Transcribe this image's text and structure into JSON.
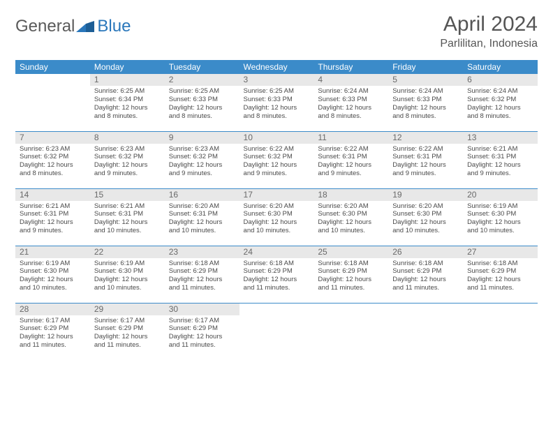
{
  "logo": {
    "text_general": "General",
    "text_blue": "Blue"
  },
  "header": {
    "month_title": "April 2024",
    "location": "Parlilitan, Indonesia"
  },
  "styling": {
    "header_bg": "#3b8bc9",
    "header_fg": "#ffffff",
    "daynum_bg": "#e8e8e8",
    "daynum_fg": "#696969",
    "cell_border": "#3b8bc9",
    "body_text": "#4a4a4a",
    "title_color": "#555555",
    "page_bg": "#ffffff",
    "header_fontsize": 12,
    "cell_fontsize": 9.5,
    "title_fontsize": 30,
    "location_fontsize": 16
  },
  "weekdays": [
    "Sunday",
    "Monday",
    "Tuesday",
    "Wednesday",
    "Thursday",
    "Friday",
    "Saturday"
  ],
  "grid": [
    [
      {
        "n": "",
        "sr": "",
        "ss": "",
        "dl": ""
      },
      {
        "n": "1",
        "sr": "Sunrise: 6:25 AM",
        "ss": "Sunset: 6:34 PM",
        "dl": "Daylight: 12 hours and 8 minutes."
      },
      {
        "n": "2",
        "sr": "Sunrise: 6:25 AM",
        "ss": "Sunset: 6:33 PM",
        "dl": "Daylight: 12 hours and 8 minutes."
      },
      {
        "n": "3",
        "sr": "Sunrise: 6:25 AM",
        "ss": "Sunset: 6:33 PM",
        "dl": "Daylight: 12 hours and 8 minutes."
      },
      {
        "n": "4",
        "sr": "Sunrise: 6:24 AM",
        "ss": "Sunset: 6:33 PM",
        "dl": "Daylight: 12 hours and 8 minutes."
      },
      {
        "n": "5",
        "sr": "Sunrise: 6:24 AM",
        "ss": "Sunset: 6:33 PM",
        "dl": "Daylight: 12 hours and 8 minutes."
      },
      {
        "n": "6",
        "sr": "Sunrise: 6:24 AM",
        "ss": "Sunset: 6:32 PM",
        "dl": "Daylight: 12 hours and 8 minutes."
      }
    ],
    [
      {
        "n": "7",
        "sr": "Sunrise: 6:23 AM",
        "ss": "Sunset: 6:32 PM",
        "dl": "Daylight: 12 hours and 8 minutes."
      },
      {
        "n": "8",
        "sr": "Sunrise: 6:23 AM",
        "ss": "Sunset: 6:32 PM",
        "dl": "Daylight: 12 hours and 9 minutes."
      },
      {
        "n": "9",
        "sr": "Sunrise: 6:23 AM",
        "ss": "Sunset: 6:32 PM",
        "dl": "Daylight: 12 hours and 9 minutes."
      },
      {
        "n": "10",
        "sr": "Sunrise: 6:22 AM",
        "ss": "Sunset: 6:32 PM",
        "dl": "Daylight: 12 hours and 9 minutes."
      },
      {
        "n": "11",
        "sr": "Sunrise: 6:22 AM",
        "ss": "Sunset: 6:31 PM",
        "dl": "Daylight: 12 hours and 9 minutes."
      },
      {
        "n": "12",
        "sr": "Sunrise: 6:22 AM",
        "ss": "Sunset: 6:31 PM",
        "dl": "Daylight: 12 hours and 9 minutes."
      },
      {
        "n": "13",
        "sr": "Sunrise: 6:21 AM",
        "ss": "Sunset: 6:31 PM",
        "dl": "Daylight: 12 hours and 9 minutes."
      }
    ],
    [
      {
        "n": "14",
        "sr": "Sunrise: 6:21 AM",
        "ss": "Sunset: 6:31 PM",
        "dl": "Daylight: 12 hours and 9 minutes."
      },
      {
        "n": "15",
        "sr": "Sunrise: 6:21 AM",
        "ss": "Sunset: 6:31 PM",
        "dl": "Daylight: 12 hours and 10 minutes."
      },
      {
        "n": "16",
        "sr": "Sunrise: 6:20 AM",
        "ss": "Sunset: 6:31 PM",
        "dl": "Daylight: 12 hours and 10 minutes."
      },
      {
        "n": "17",
        "sr": "Sunrise: 6:20 AM",
        "ss": "Sunset: 6:30 PM",
        "dl": "Daylight: 12 hours and 10 minutes."
      },
      {
        "n": "18",
        "sr": "Sunrise: 6:20 AM",
        "ss": "Sunset: 6:30 PM",
        "dl": "Daylight: 12 hours and 10 minutes."
      },
      {
        "n": "19",
        "sr": "Sunrise: 6:20 AM",
        "ss": "Sunset: 6:30 PM",
        "dl": "Daylight: 12 hours and 10 minutes."
      },
      {
        "n": "20",
        "sr": "Sunrise: 6:19 AM",
        "ss": "Sunset: 6:30 PM",
        "dl": "Daylight: 12 hours and 10 minutes."
      }
    ],
    [
      {
        "n": "21",
        "sr": "Sunrise: 6:19 AM",
        "ss": "Sunset: 6:30 PM",
        "dl": "Daylight: 12 hours and 10 minutes."
      },
      {
        "n": "22",
        "sr": "Sunrise: 6:19 AM",
        "ss": "Sunset: 6:30 PM",
        "dl": "Daylight: 12 hours and 10 minutes."
      },
      {
        "n": "23",
        "sr": "Sunrise: 6:18 AM",
        "ss": "Sunset: 6:29 PM",
        "dl": "Daylight: 12 hours and 11 minutes."
      },
      {
        "n": "24",
        "sr": "Sunrise: 6:18 AM",
        "ss": "Sunset: 6:29 PM",
        "dl": "Daylight: 12 hours and 11 minutes."
      },
      {
        "n": "25",
        "sr": "Sunrise: 6:18 AM",
        "ss": "Sunset: 6:29 PM",
        "dl": "Daylight: 12 hours and 11 minutes."
      },
      {
        "n": "26",
        "sr": "Sunrise: 6:18 AM",
        "ss": "Sunset: 6:29 PM",
        "dl": "Daylight: 12 hours and 11 minutes."
      },
      {
        "n": "27",
        "sr": "Sunrise: 6:18 AM",
        "ss": "Sunset: 6:29 PM",
        "dl": "Daylight: 12 hours and 11 minutes."
      }
    ],
    [
      {
        "n": "28",
        "sr": "Sunrise: 6:17 AM",
        "ss": "Sunset: 6:29 PM",
        "dl": "Daylight: 12 hours and 11 minutes."
      },
      {
        "n": "29",
        "sr": "Sunrise: 6:17 AM",
        "ss": "Sunset: 6:29 PM",
        "dl": "Daylight: 12 hours and 11 minutes."
      },
      {
        "n": "30",
        "sr": "Sunrise: 6:17 AM",
        "ss": "Sunset: 6:29 PM",
        "dl": "Daylight: 12 hours and 11 minutes."
      },
      {
        "n": "",
        "sr": "",
        "ss": "",
        "dl": ""
      },
      {
        "n": "",
        "sr": "",
        "ss": "",
        "dl": ""
      },
      {
        "n": "",
        "sr": "",
        "ss": "",
        "dl": ""
      },
      {
        "n": "",
        "sr": "",
        "ss": "",
        "dl": ""
      }
    ]
  ]
}
